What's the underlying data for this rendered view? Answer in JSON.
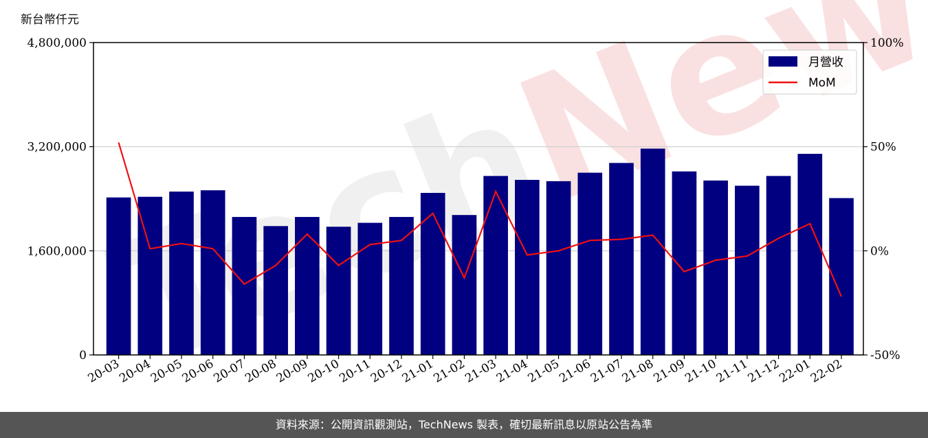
{
  "y_unit_label": "新台幣仟元",
  "footer_text": "資料來源：公開資訊觀測站，TechNews 製表，確切最新訊息以原站公告為準",
  "watermark": {
    "part1": "Tech",
    "part2": "News"
  },
  "colors": {
    "bar": "#000080",
    "line": "#ee1111",
    "grid": "#cccccc",
    "footer_bg": "#555555"
  },
  "chart_data": {
    "type": "bar",
    "categories": [
      "20-03",
      "20-04",
      "20-05",
      "20-06",
      "20-07",
      "20-08",
      "20-09",
      "20-10",
      "20-11",
      "20-12",
      "21-01",
      "21-02",
      "21-03",
      "21-04",
      "21-05",
      "21-06",
      "21-07",
      "21-08",
      "21-09",
      "21-10",
      "21-11",
      "21-12",
      "22-01",
      "22-02"
    ],
    "series": [
      {
        "name": "月營收",
        "type": "bar",
        "axis": "left",
        "values": [
          2420000,
          2430000,
          2510000,
          2530000,
          2120000,
          1980000,
          2120000,
          1970000,
          2030000,
          2120000,
          2490000,
          2150000,
          2750000,
          2690000,
          2670000,
          2800000,
          2950000,
          3170000,
          2820000,
          2680000,
          2600000,
          2750000,
          3090000,
          2410000
        ]
      },
      {
        "name": "MoM",
        "type": "line",
        "axis": "right",
        "values": [
          52,
          1,
          3.5,
          1,
          -16,
          -7,
          8,
          -7,
          3,
          5,
          18,
          -13,
          28.5,
          -2,
          0,
          5,
          5.5,
          7.5,
          -10,
          -4.5,
          -2.5,
          6,
          13,
          -22
        ]
      }
    ],
    "y_left": {
      "min": 0,
      "max": 4800000,
      "ticks": [
        "0",
        "1,600,000",
        "3,200,000",
        "4,800,000"
      ],
      "tick_values": [
        0,
        1600000,
        3200000,
        4800000
      ]
    },
    "y_right": {
      "min": -50,
      "max": 100,
      "ticks": [
        "-50%",
        "0%",
        "50%",
        "100%"
      ],
      "tick_values": [
        -50,
        0,
        50,
        100
      ]
    },
    "grid": "horizontal",
    "legend_position": "top-right"
  }
}
